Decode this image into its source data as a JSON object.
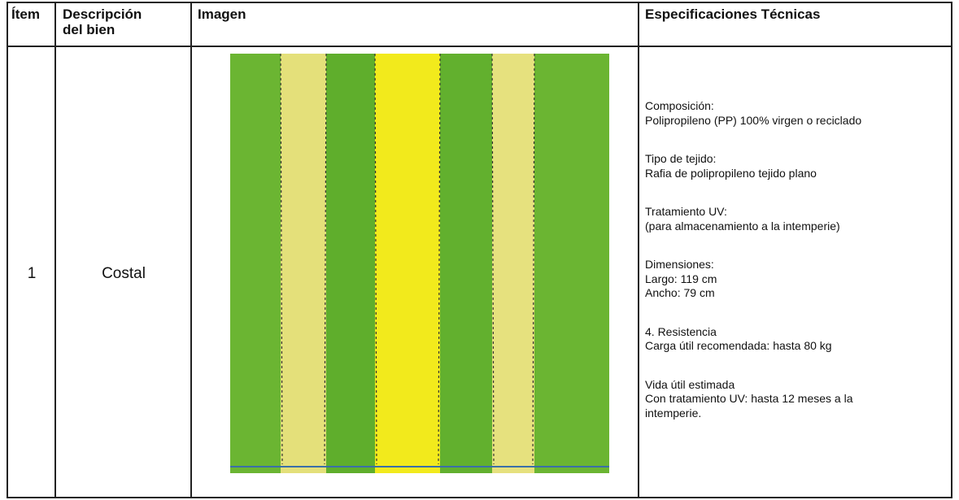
{
  "table": {
    "header": [
      "Ítem",
      [
        "Descripción",
        "del bien"
      ],
      "Imagen",
      "Especificaciones Técnicas"
    ],
    "rows": [
      [
        "1",
        "Costal",
        [
          [
            "Composición:",
            "Polipropileno (PP) 100% virgen o reciclado"
          ],
          [
            "Tipo de tejido:",
            "Rafia de polipropileno tejido plano"
          ],
          [
            "Tratamiento UV:",
            "(para almacenamiento a la intemperie)"
          ],
          [
            "Dimensiones:",
            "Largo: 119 cm",
            "Ancho: 79 cm"
          ],
          [
            "4. Resistencia",
            "Carga útil recomendada: hasta 80 kg"
          ],
          [
            "Vida útil estimada",
            "Con tratamiento UV: hasta 12 meses a la",
            "intemperie."
          ]
        ]
      ]
    ]
  }
}
